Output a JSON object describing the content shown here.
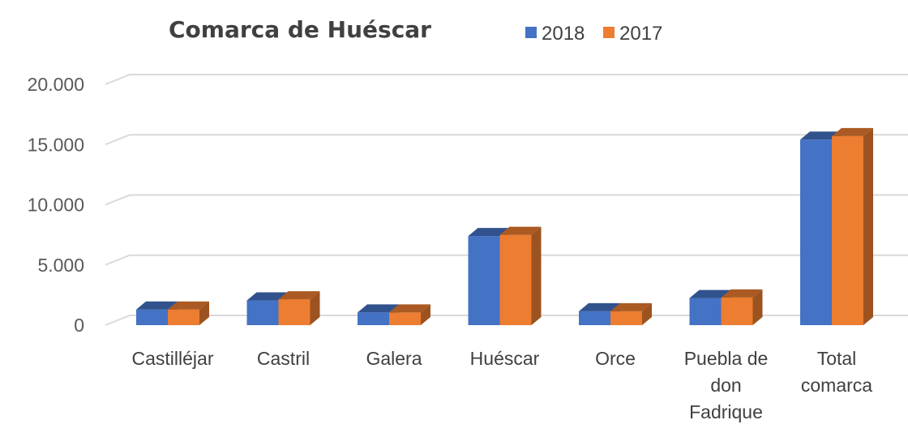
{
  "chart_data": {
    "type": "bar",
    "title": "Comarca de Huéscar",
    "categories": [
      [
        "Castilléjar"
      ],
      [
        "Castril"
      ],
      [
        "Galera"
      ],
      [
        "Huéscar"
      ],
      [
        "Orce"
      ],
      [
        "Puebla de",
        "don",
        "Fadrique"
      ],
      [
        "Total",
        "comarca"
      ]
    ],
    "series": [
      {
        "name": "2018",
        "color": "#4472c4",
        "values": [
          1300,
          2050,
          1050,
          7400,
          1150,
          2250,
          15400
        ]
      },
      {
        "name": "2017",
        "color": "#ed7d31",
        "values": [
          1300,
          2150,
          1050,
          7500,
          1150,
          2300,
          15700
        ]
      }
    ],
    "yticks": [
      "0",
      "5.000",
      "10.000",
      "15.000",
      "20.000"
    ],
    "ytick_values": [
      0,
      5000,
      10000,
      15000,
      20000
    ],
    "ylim": [
      0,
      20000
    ],
    "grid": true,
    "legend_position": "top"
  }
}
